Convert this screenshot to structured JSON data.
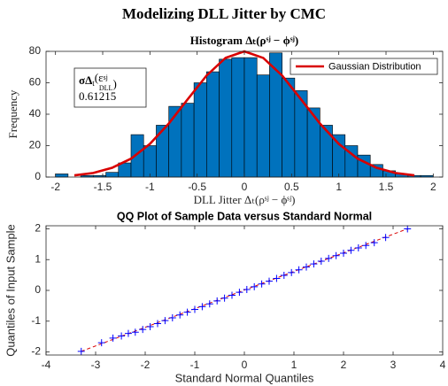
{
  "title": "Modelizing DLL Jitter by CMC",
  "chart_data": [
    {
      "type": "histogram",
      "title": "Histogram Δₜ(ρˢʲ − ϕˢʲ)",
      "x_label": "DLL Jitter Δₜ(ρˢʲ − ϕˢʲ)",
      "y_label": "Frequency",
      "bins": [
        -2,
        -1.8667,
        -1.7333,
        -1.6,
        -1.4667,
        -1.3333,
        -1.2,
        -1.0667,
        -0.9333,
        -0.8,
        -0.6667,
        -0.5333,
        -0.4,
        -0.2667,
        -0.1333,
        0,
        0.1333,
        0.2667,
        0.4,
        0.5333,
        0.6667,
        0.8,
        0.9333,
        1.0667,
        1.2,
        1.3333,
        1.4667,
        1.6,
        1.7333,
        1.8667,
        2
      ],
      "counts": [
        2,
        0,
        1,
        1,
        3,
        9,
        27,
        20,
        33,
        45,
        47,
        60,
        67,
        75,
        76,
        76,
        65,
        79,
        63,
        55,
        44,
        33,
        27,
        20,
        14,
        8,
        4,
        2,
        1,
        1
      ],
      "color": "#0072bd",
      "series": [
        {
          "name": "Gaussian Distribution",
          "color": "#d90000",
          "x": [
            -1.8,
            -1.6,
            -1.4,
            -1.2,
            -1.0,
            -0.8,
            -0.6,
            -0.4,
            -0.2,
            0,
            0.2,
            0.4,
            0.6,
            0.8,
            1.0,
            1.2,
            1.4,
            1.6,
            1.8
          ],
          "values": [
            1.1,
            2.6,
            5.9,
            11.7,
            21.1,
            34.1,
            49.5,
            64.6,
            75.8,
            80,
            75.8,
            64.6,
            49.5,
            34.1,
            21.1,
            11.7,
            5.9,
            2.6,
            1.1
          ]
        }
      ],
      "annotation": {
        "parts": [
          "σΔ",
          "t",
          "(ε",
          "sj",
          "DLL",
          ")"
        ],
        "value": 0.61215
      },
      "xlim": [
        -2.1,
        2.1
      ],
      "xticks": [
        -2,
        -1.5,
        -1,
        -0.5,
        0,
        0.5,
        1,
        1.5,
        2
      ],
      "ylim": [
        0,
        80
      ],
      "yticks": [
        0,
        20,
        40,
        60,
        80
      ],
      "legend": "upper right",
      "grid": false
    },
    {
      "type": "scatter",
      "title": "QQ Plot of Sample Data versus Standard Normal",
      "x_label": "Standard Normal Quantiles",
      "y_label": "Quantiles of Input Sample",
      "x": [
        -3.29,
        -2.88,
        -2.65,
        -2.48,
        -2.34,
        -2.2,
        -2.05,
        -1.9,
        -1.75,
        -1.6,
        -1.45,
        -1.3,
        -1.15,
        -1.0,
        -0.85,
        -0.7,
        -0.55,
        -0.4,
        -0.25,
        -0.1,
        0.05,
        0.2,
        0.35,
        0.5,
        0.65,
        0.8,
        0.95,
        1.1,
        1.25,
        1.4,
        1.55,
        1.7,
        1.85,
        2.0,
        2.15,
        2.3,
        2.45,
        2.62,
        2.85,
        3.29
      ],
      "values": [
        -1.98,
        -1.7,
        -1.55,
        -1.48,
        -1.4,
        -1.36,
        -1.27,
        -1.18,
        -1.08,
        -0.98,
        -0.89,
        -0.8,
        -0.71,
        -0.62,
        -0.53,
        -0.44,
        -0.34,
        -0.25,
        -0.16,
        -0.06,
        0.03,
        0.12,
        0.21,
        0.3,
        0.39,
        0.49,
        0.58,
        0.67,
        0.76,
        0.86,
        0.95,
        1.04,
        1.13,
        1.21,
        1.3,
        1.38,
        1.46,
        1.55,
        1.72,
        2.0
      ],
      "color": "#0000ff",
      "reference": {
        "color": "#d90000",
        "x": [
          -3.29,
          3.29
        ],
        "values": [
          -1.98,
          2.0
        ]
      },
      "xlim": [
        -4,
        4
      ],
      "xticks": [
        -4,
        -3,
        -2,
        -1,
        0,
        1,
        2,
        3,
        4
      ],
      "ylim": [
        -2.1,
        2.1
      ],
      "yticks": [
        -2,
        -1,
        0,
        1,
        2
      ],
      "grid": false
    }
  ]
}
